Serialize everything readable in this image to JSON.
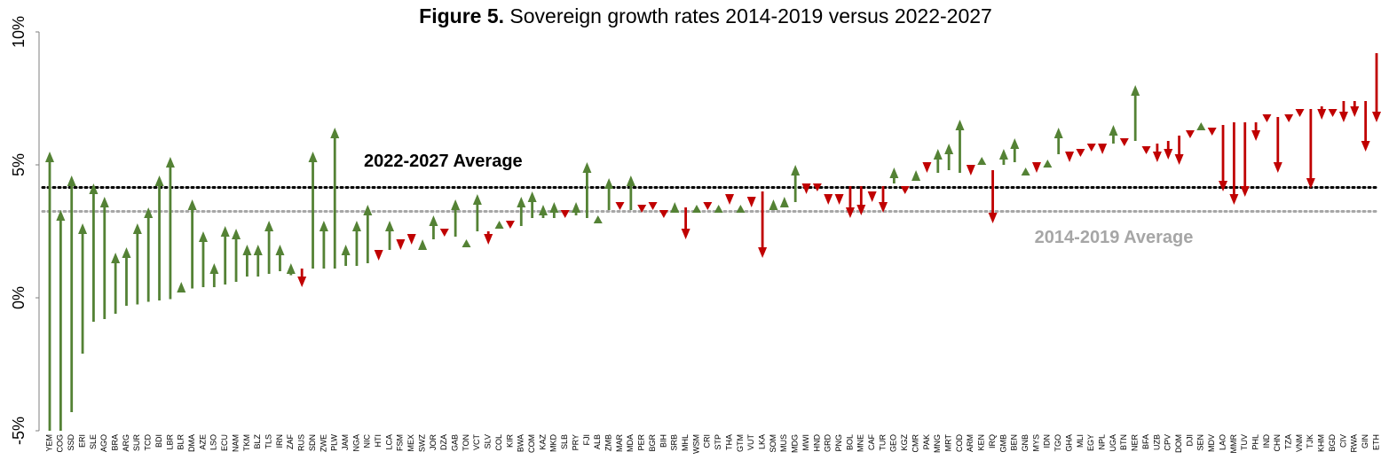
{
  "chart_data": {
    "type": "arrow",
    "title_prefix": "Figure 5.",
    "title": "Sovereign growth rates 2014-2019 versus 2022-2027",
    "categories": [
      "YEM",
      "COG",
      "SSD",
      "ERI",
      "SLE",
      "AGO",
      "BRA",
      "ARG",
      "SUR",
      "TCD",
      "BDI",
      "LBR",
      "BLR",
      "DMA",
      "AZE",
      "LSO",
      "ECU",
      "NAM",
      "TKM",
      "BLZ",
      "TLS",
      "IRN",
      "ZAF",
      "RUS",
      "SDN",
      "ZWE",
      "PLW",
      "JAM",
      "NGA",
      "NIC",
      "HTI",
      "LCA",
      "FSM",
      "MEX",
      "SWZ",
      "JOR",
      "DZA",
      "GAB",
      "TON",
      "VCT",
      "SLV",
      "COL",
      "KIR",
      "BWA",
      "COM",
      "KAZ",
      "MKD",
      "SLB",
      "PRY",
      "FJI",
      "ALB",
      "ZMB",
      "MAR",
      "MDA",
      "PER",
      "BGR",
      "BIH",
      "SRB",
      "MHL",
      "WSM",
      "CRI",
      "STP",
      "THA",
      "GTM",
      "VUT",
      "LKA",
      "SOM",
      "MUS",
      "MDG",
      "MWI",
      "HND",
      "GRD",
      "PNG",
      "BOL",
      "MNE",
      "CAF",
      "TUR",
      "GEO",
      "KGZ",
      "CMR",
      "PAK",
      "MNG",
      "MRT",
      "COD",
      "ARM",
      "KEN",
      "IRQ",
      "GMB",
      "BEN",
      "GNB",
      "MYS",
      "IDN",
      "TGO",
      "GHA",
      "MLI",
      "EGY",
      "NPL",
      "UGA",
      "BTN",
      "NER",
      "BFA",
      "UZB",
      "CPV",
      "DOM",
      "DJI",
      "SEN",
      "MDV",
      "LAO",
      "MMR",
      "TUV",
      "PHL",
      "IND",
      "CHN",
      "TZA",
      "VNM",
      "TJK",
      "KHM",
      "BGD",
      "CIV",
      "RWA",
      "GIN",
      "ETH"
    ],
    "series": [
      {
        "values": [
          -5.0,
          -5.0,
          -4.3,
          -2.1,
          -0.9,
          -0.8,
          -0.6,
          -0.3,
          -0.25,
          -0.15,
          -0.1,
          -0.05,
          0.2,
          0.35,
          0.4,
          0.4,
          0.5,
          0.6,
          0.8,
          0.8,
          0.9,
          1.0,
          0.85,
          1.1,
          1.1,
          1.1,
          1.1,
          1.2,
          1.2,
          1.3,
          1.8,
          1.8,
          2.2,
          2.4,
          1.8,
          2.2,
          2.6,
          2.3,
          1.9,
          2.5,
          2.5,
          2.6,
          2.9,
          2.7,
          3.0,
          3.0,
          3.0,
          3.3,
          3.1,
          3.0,
          2.8,
          3.3,
          3.6,
          3.3,
          3.5,
          3.6,
          3.3,
          3.2,
          3.4,
          3.2,
          3.6,
          3.2,
          3.9,
          3.2,
          3.8,
          4.0,
          3.3,
          3.4,
          3.6,
          4.3,
          4.3,
          3.9,
          3.9,
          4.2,
          4.2,
          4.0,
          4.2,
          4.3,
          4.2,
          4.4,
          5.1,
          4.7,
          4.8,
          4.7,
          5.0,
          5.0,
          4.8,
          5.0,
          5.1,
          4.6,
          5.1,
          4.9,
          5.4,
          5.5,
          5.6,
          5.8,
          5.8,
          5.8,
          6.0,
          5.9,
          5.7,
          5.8,
          5.9,
          6.1,
          6.3,
          6.3,
          6.4,
          6.5,
          6.6,
          6.6,
          6.6,
          6.9,
          6.8,
          6.9,
          7.1,
          7.1,
          7.2,
          7.1,
          7.4,
          7.4,
          7.4,
          9.2
        ]
      },
      {
        "values": [
          5.5,
          3.3,
          4.6,
          2.8,
          4.3,
          3.8,
          1.7,
          1.9,
          2.8,
          3.4,
          4.6,
          5.3,
          0.6,
          3.7,
          2.5,
          1.3,
          2.7,
          2.6,
          2.0,
          2.0,
          2.9,
          2.0,
          1.3,
          0.4,
          5.5,
          2.9,
          6.4,
          2.0,
          2.9,
          3.5,
          1.4,
          2.9,
          1.8,
          2.0,
          2.2,
          3.1,
          2.3,
          3.7,
          2.2,
          3.9,
          2.0,
          2.9,
          2.6,
          3.8,
          4.0,
          3.5,
          3.6,
          3.0,
          3.6,
          5.1,
          3.1,
          4.5,
          3.3,
          4.6,
          3.2,
          3.3,
          3.0,
          3.6,
          2.2,
          3.5,
          3.3,
          3.5,
          3.5,
          3.5,
          3.4,
          1.5,
          3.7,
          3.8,
          5.0,
          3.9,
          4.0,
          3.5,
          3.5,
          3.0,
          3.1,
          3.6,
          3.2,
          4.9,
          3.9,
          4.8,
          4.7,
          5.6,
          5.8,
          6.7,
          4.6,
          5.3,
          2.8,
          5.6,
          6.0,
          4.9,
          4.7,
          5.2,
          6.4,
          5.1,
          5.3,
          5.5,
          5.4,
          6.5,
          5.7,
          8.0,
          5.4,
          5.1,
          5.2,
          5.0,
          6.0,
          6.6,
          6.1,
          4.0,
          3.5,
          3.8,
          5.9,
          6.6,
          4.7,
          6.6,
          6.8,
          4.1,
          6.7,
          6.8,
          6.6,
          6.8,
          5.5,
          6.6
        ]
      }
    ],
    "up_color": "#548235",
    "down_color": "#c00000",
    "averages": [
      {
        "label": "2022-2027 Average",
        "value": 4.15,
        "color": "#000000"
      },
      {
        "label": "2014-2019 Average",
        "value": 3.25,
        "color": "#a6a6a6"
      }
    ],
    "ylim": [
      -5,
      10
    ],
    "yticks": [
      {
        "value": -5,
        "label": "-5%"
      },
      {
        "value": 0,
        "label": "0%"
      },
      {
        "value": 5,
        "label": "5%"
      },
      {
        "value": 10,
        "label": "10%"
      }
    ]
  }
}
